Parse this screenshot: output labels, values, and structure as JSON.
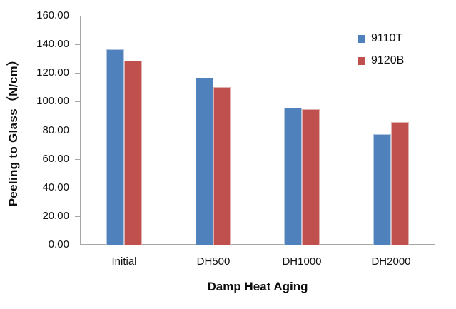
{
  "chart_data": {
    "type": "bar",
    "title": "",
    "xlabel": "Damp Heat Aging",
    "ylabel": "Peeling to Glass（N/cm）",
    "categories": [
      "Initial",
      "DH500",
      "DH1000",
      "DH2000"
    ],
    "series": [
      {
        "name": "9110T",
        "color": "#4f81bd",
        "edge_color": "#b3c6df",
        "values": [
          136.5,
          116.5,
          95.5,
          77.5
        ]
      },
      {
        "name": "9120B",
        "color": "#c0504d",
        "edge_color": "#e0b1af",
        "values": [
          128.5,
          110.0,
          94.5,
          85.5
        ]
      }
    ],
    "ylim": [
      0,
      160
    ],
    "ytick_interval": 20,
    "y_tick_labels": [
      "160.00",
      "140.00",
      "120.00",
      "100.00",
      "80.00",
      "60.00",
      "40.00",
      "20.00",
      "0.00"
    ],
    "grid": false,
    "legend_position": "inside-top-right"
  },
  "legend": {
    "items": [
      {
        "label": "9110T",
        "color": "#4f81bd"
      },
      {
        "label": "9120B",
        "color": "#c0504d"
      }
    ]
  }
}
